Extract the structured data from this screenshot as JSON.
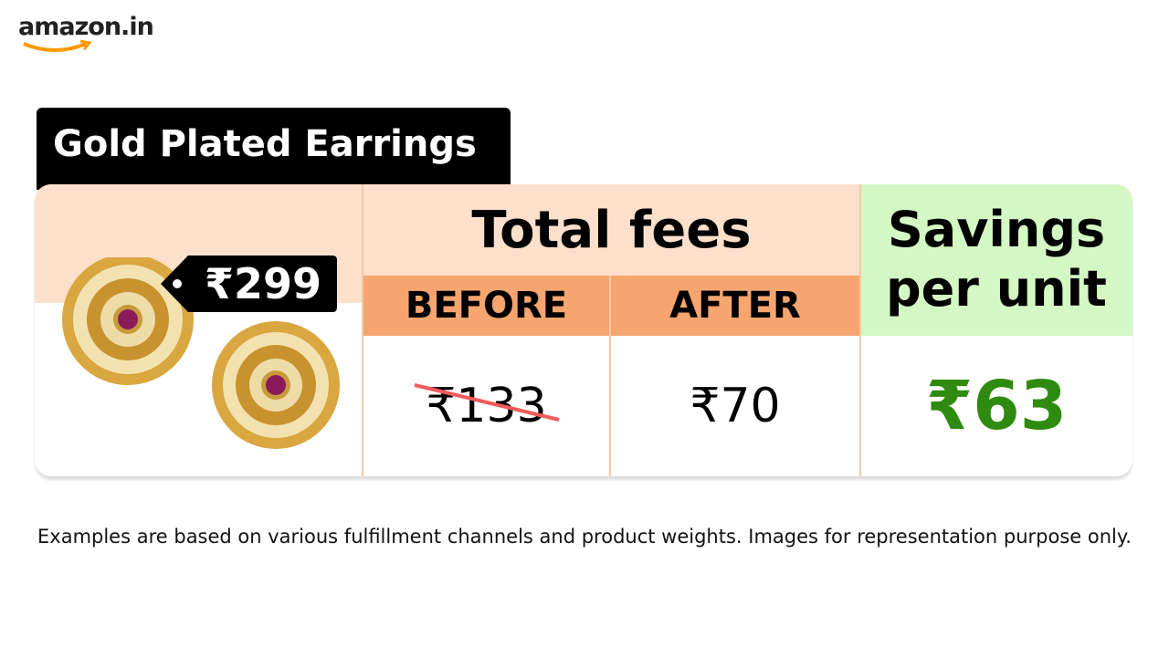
{
  "logo": "amazon.in",
  "product": {
    "title": "Gold Plated Earrings",
    "price": "₹299"
  },
  "table": {
    "fees_header": "Total fees",
    "before_header": "BEFORE",
    "after_header": "AFTER",
    "before_value": "₹133",
    "after_value": "₹70",
    "savings_header": "Savings per unit",
    "savings_value": "₹63"
  },
  "footnote": "Examples are based on various fulfillment channels and product weights. Images for representation purpose only."
}
